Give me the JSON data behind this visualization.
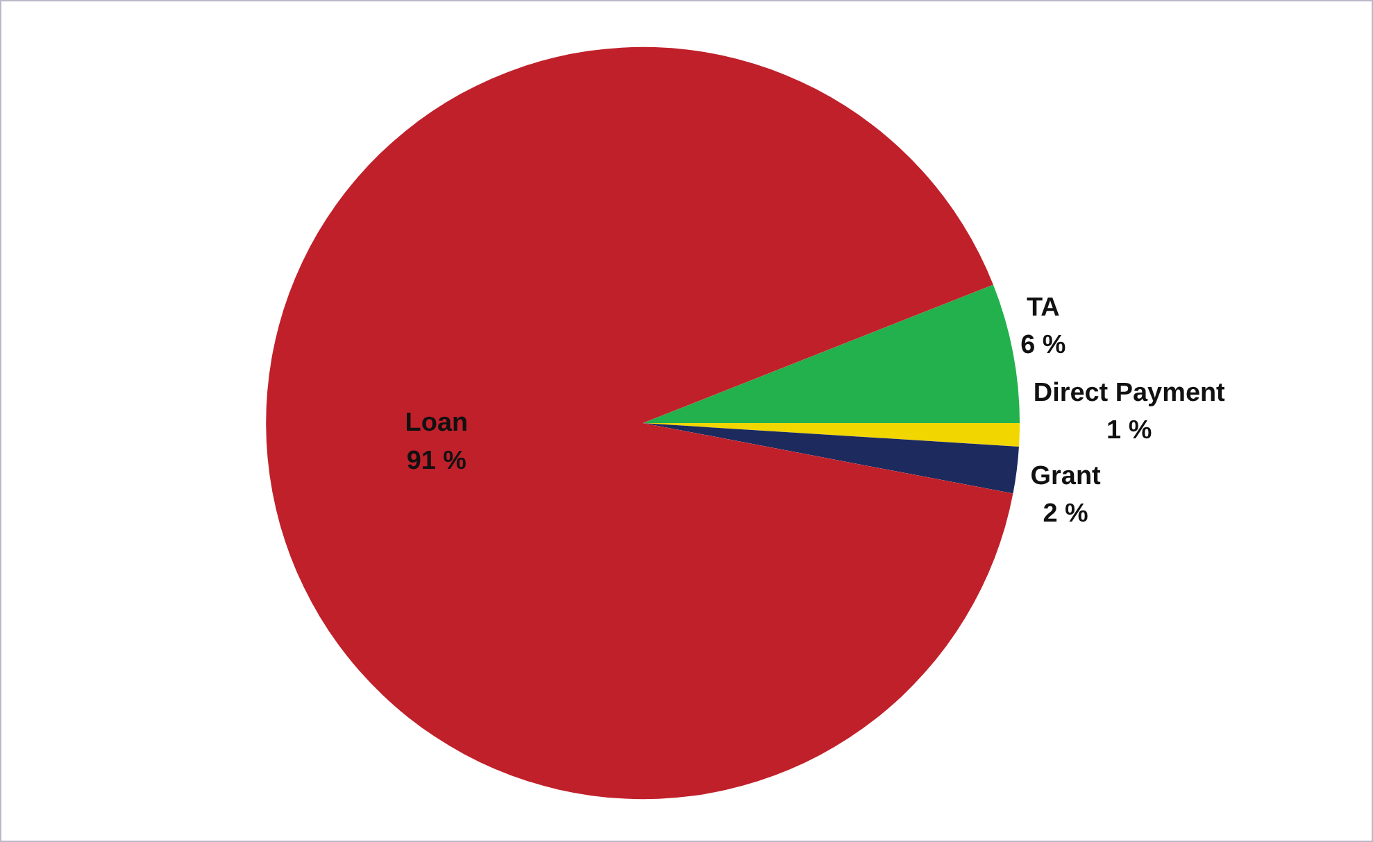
{
  "chart_data": {
    "type": "pie",
    "categories": [
      "TA",
      "Direct Payment",
      "Grant",
      "Loan"
    ],
    "values": [
      6,
      1,
      2,
      91
    ],
    "colors": [
      "#22b14c",
      "#f2d600",
      "#1c2a5e",
      "#c0202a"
    ],
    "value_labels": [
      "6 %",
      "1 %",
      "2 %",
      "91 %"
    ],
    "legend": false
  }
}
